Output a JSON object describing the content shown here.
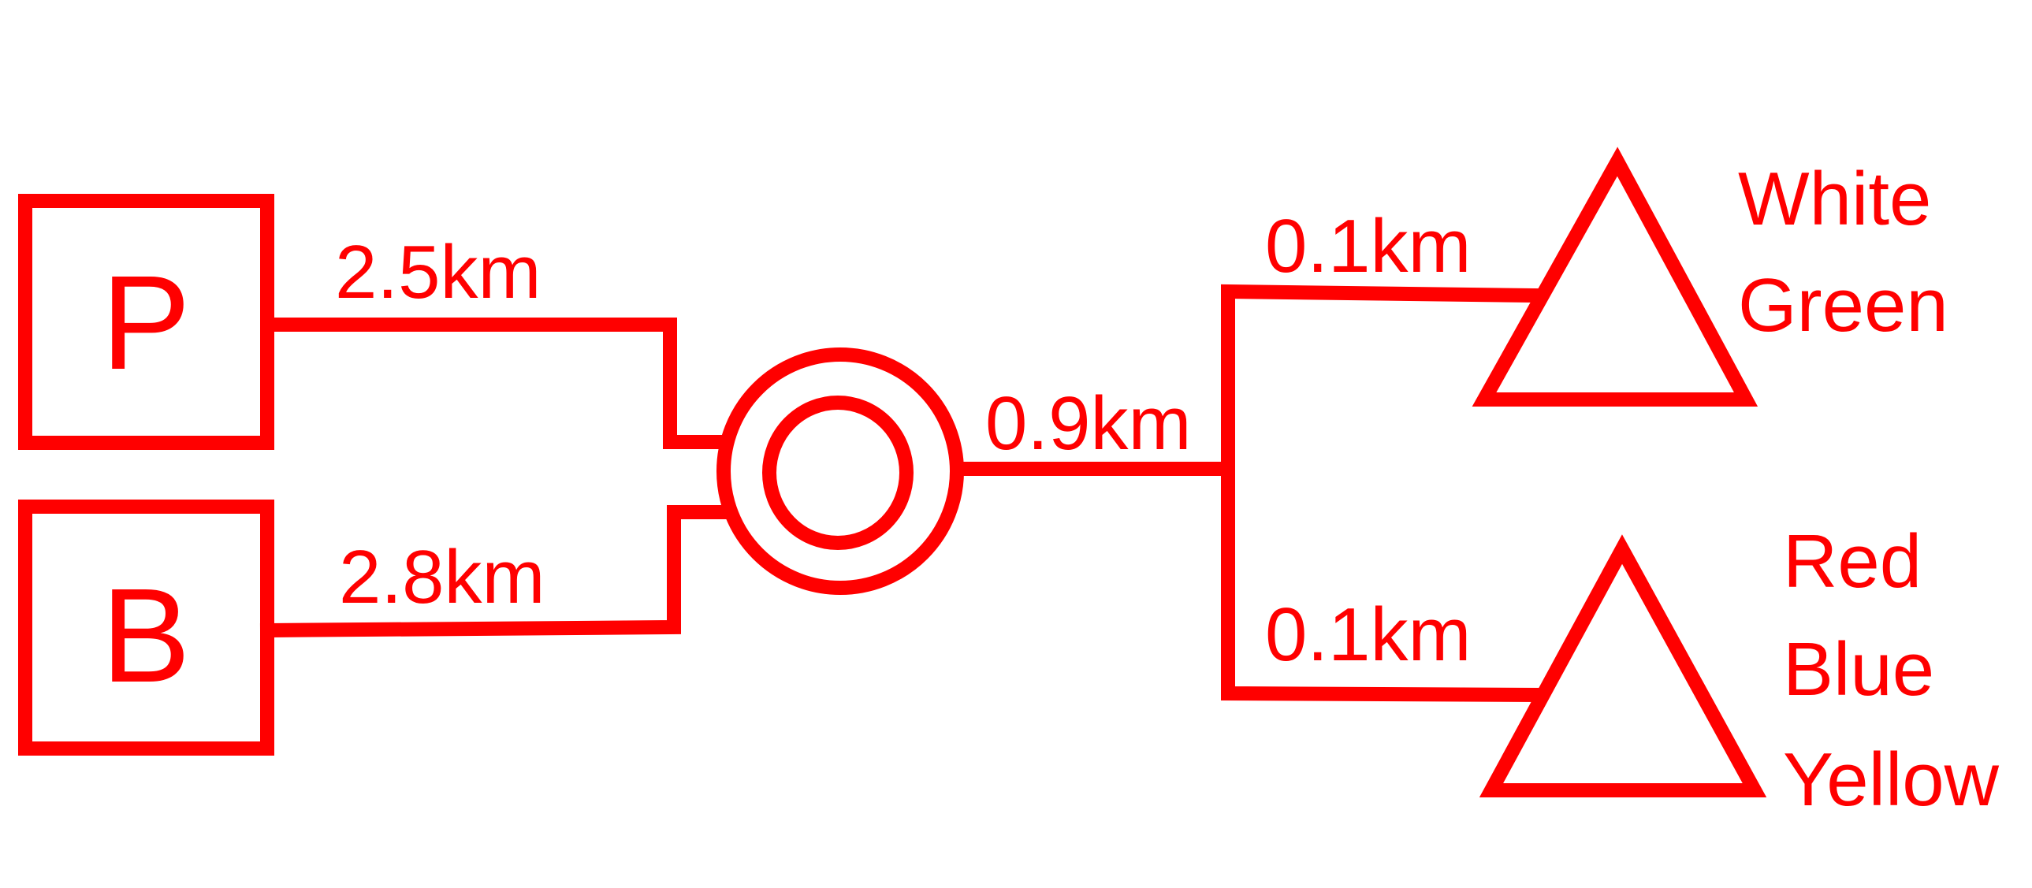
{
  "diagram": {
    "line_color": "#ff0000",
    "sources": [
      {
        "id": "p",
        "label": "P"
      },
      {
        "id": "b",
        "label": "B"
      }
    ],
    "hub": {
      "shape": "double-circle"
    },
    "sinks": [
      {
        "id": "top",
        "shape": "triangle",
        "labels": [
          "White",
          "Green"
        ]
      },
      {
        "id": "bottom",
        "shape": "triangle",
        "labels": [
          "Red",
          "Blue",
          "Yellow"
        ]
      }
    ],
    "distances": {
      "p_to_hub": "2.5km",
      "b_to_hub": "2.8km",
      "hub_to_split": "0.9km",
      "split_to_top": "0.1km",
      "split_to_bottom": "0.1km"
    }
  }
}
